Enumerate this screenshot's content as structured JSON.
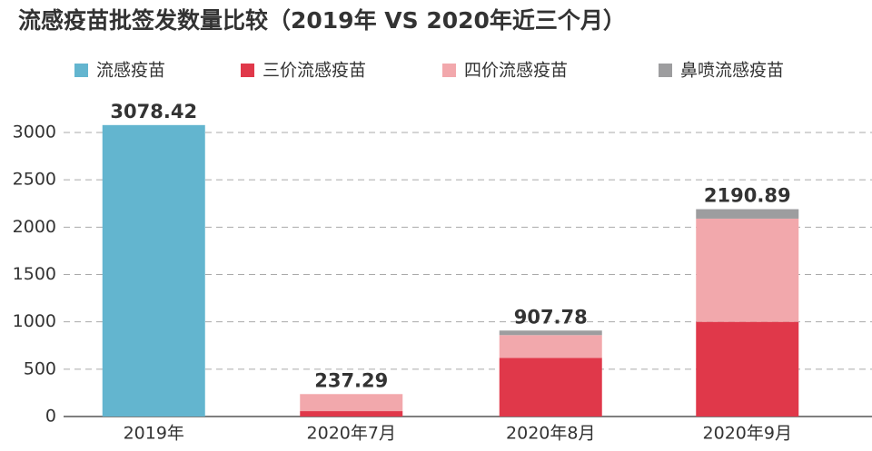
{
  "chart_data": {
    "type": "stacked_bar",
    "title": "流感疫苗批签发数量比较（2019年 VS 2020年近三个月）",
    "categories": [
      "2019年",
      "2020年7月",
      "2020年8月",
      "2020年9月"
    ],
    "series": [
      {
        "name": "流感疫苗",
        "color": "#63b5cf",
        "values": [
          3078.42,
          null,
          null,
          null
        ]
      },
      {
        "name": "三价流感疫苗",
        "color": "#e0384a",
        "values": [
          null,
          57,
          620,
          1000
        ]
      },
      {
        "name": "四价流感疫苗",
        "color": "#f2a8ac",
        "values": [
          null,
          180,
          240,
          1090
        ]
      },
      {
        "name": "鼻喷流感疫苗",
        "color": "#9d9d9f",
        "values": [
          null,
          null,
          48,
          100
        ]
      }
    ],
    "totals": [
      3078.42,
      237.29,
      907.78,
      2190.89
    ],
    "ylim": [
      0,
      3000
    ],
    "yticks": [
      0,
      500,
      1000,
      1500,
      2000,
      2500,
      3000
    ],
    "grid": true,
    "legend": "top"
  }
}
